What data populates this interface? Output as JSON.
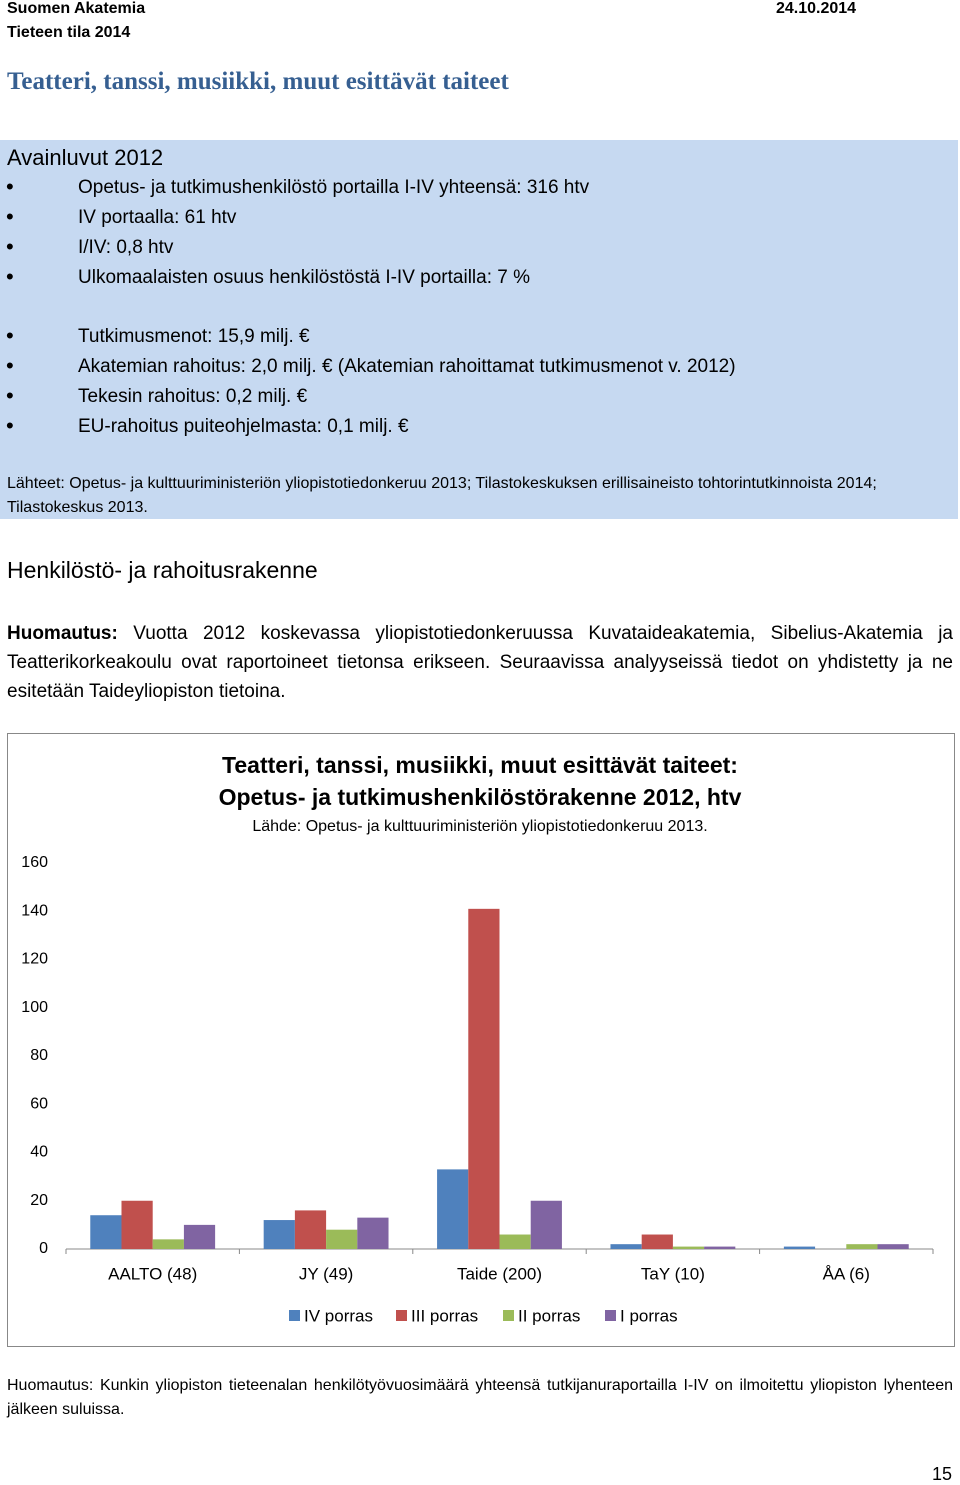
{
  "header": {
    "organization": "Suomen Akatemia",
    "date": "24.10.2014",
    "publication": "Tieteen tila 2014"
  },
  "title": "Teatteri, tanssi, musiikki, muut esittävät taiteet",
  "keybox": {
    "heading": "Avainluvut 2012",
    "items_a": [
      "Opetus- ja tutkimushenkilöstö portailla I-IV yhteensä: 316 htv",
      "IV portaalla: 61 htv",
      "I/IV: 0,8 htv",
      "Ulkomaalaisten osuus henkilöstöstä I-IV portailla: 7 %"
    ],
    "items_b": [
      "Tutkimusmenot: 15,9 milj. €",
      "Akatemian rahoitus: 2,0 milj. € (Akatemian rahoittamat tutkimusmenot v. 2012)",
      "Tekesin rahoitus: 0,2 milj. €",
      "EU-rahoitus puiteohjelmasta: 0,1 milj. €"
    ],
    "sources": "Lähteet: Opetus- ja kulttuuriministeriön yliopistotiedonkeruu 2013; Tilastokeskuksen erillisaineisto tohtorintutkinnoista 2014; Tilastokeskus 2013."
  },
  "section": {
    "heading": "Henkilöstö- ja rahoitusrakenne",
    "note_label": "Huomautus:",
    "note_text": "Vuotta 2012 koskevassa yliopistotiedonkeruussa Kuvataideakatemia, Sibelius-Akatemia ja Teatterikorkeakoulu ovat raportoineet tietonsa erikseen. Seuraavissa analyyseissä tiedot on yhdistetty ja ne esitetään Taideyliopiston tietoina."
  },
  "chart_data": {
    "type": "bar",
    "title": [
      "Teatteri, tanssi, musiikki, muut esittävät taiteet:",
      "Opetus- ja tutkimushenkilöstörakenne 2012, htv"
    ],
    "subtitle": "Lähde: Opetus- ja kulttuuriministeriön yliopistotiedonkeruu 2013.",
    "categories": [
      "AALTO (48)",
      "JY (49)",
      "Taide (200)",
      "TaY (10)",
      "ÅA (6)"
    ],
    "series": [
      {
        "name": "IV porras",
        "color": "#4f81bd",
        "values": [
          14,
          12,
          33,
          2,
          1
        ]
      },
      {
        "name": "III porras",
        "color": "#c0504d",
        "values": [
          20,
          16,
          141,
          6,
          0
        ]
      },
      {
        "name": "II porras",
        "color": "#9bbb59",
        "values": [
          4,
          8,
          6,
          1,
          2
        ]
      },
      {
        "name": "I porras",
        "color": "#8064a2",
        "values": [
          10,
          13,
          20,
          1,
          2
        ]
      }
    ],
    "ylim": [
      0,
      160
    ],
    "yticks": [
      0,
      20,
      40,
      60,
      80,
      100,
      120,
      140,
      160
    ],
    "grid": false,
    "legend": "bottom"
  },
  "footnote": "Huomautus: Kunkin yliopiston tieteenalan henkilötyövuosimäärä yhteensä tutkijanuraportailla I-IV on ilmoitettu yliopiston lyhenteen jälkeen suluissa.",
  "page_number": "15"
}
